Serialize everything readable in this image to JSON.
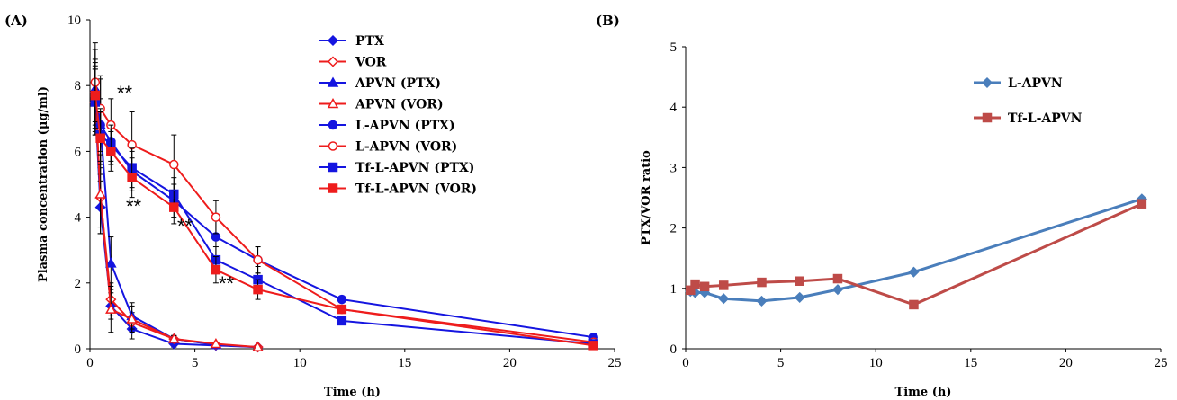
{
  "chart_data": [
    {
      "panel_label": "(A)",
      "type": "line",
      "xlabel": "Time (h)",
      "ylabel": "Plasma concentration  (μg/ml)",
      "xlim": [
        0,
        25
      ],
      "ylim": [
        0,
        10
      ],
      "xticks": [
        "0",
        "5",
        "10",
        "15",
        "20",
        "25"
      ],
      "yticks": [
        "0",
        "2",
        "4",
        "6",
        "8",
        "10"
      ],
      "legend_position": "top-center",
      "annotations": [
        "**",
        "**",
        "**",
        "**"
      ],
      "series": [
        {
          "name": "PTX",
          "color": "#1515e0",
          "marker": "diamond",
          "filled": true,
          "x": [
            0.25,
            0.5,
            1,
            2,
            4,
            6,
            8
          ],
          "y": [
            7.5,
            4.3,
            1.3,
            0.6,
            0.15,
            0.1,
            0.05
          ],
          "err": [
            1.0,
            0.8,
            0.4,
            0.3,
            0.1,
            0.05,
            0.03
          ]
        },
        {
          "name": "VOR",
          "color": "#ee1c1c",
          "marker": "diamond",
          "filled": false,
          "x": [
            0.25,
            0.5,
            1,
            2,
            4,
            6,
            8
          ],
          "y": [
            7.8,
            4.6,
            1.5,
            0.8,
            0.3,
            0.12,
            0.05
          ],
          "err": [
            1.0,
            0.9,
            0.5,
            0.3,
            0.1,
            0.05,
            0.03
          ]
        },
        {
          "name": "APVN (PTX)",
          "color": "#1515e0",
          "marker": "triangle",
          "filled": true,
          "x": [
            0.25,
            0.5,
            1,
            2,
            4,
            6,
            8
          ],
          "y": [
            7.9,
            6.8,
            2.6,
            1.0,
            0.3,
            0.12,
            0.05
          ],
          "err": [
            1.2,
            1.5,
            0.8,
            0.4,
            0.1,
            0.05,
            0.03
          ]
        },
        {
          "name": "APVN (VOR)",
          "color": "#ee1c1c",
          "marker": "triangle",
          "filled": false,
          "x": [
            0.25,
            0.5,
            1,
            2,
            4,
            6,
            8
          ],
          "y": [
            7.6,
            4.7,
            1.2,
            0.9,
            0.3,
            0.15,
            0.05
          ],
          "err": [
            1.0,
            1.2,
            0.7,
            0.4,
            0.1,
            0.05,
            0.03
          ]
        },
        {
          "name": "L-APVN (PTX)",
          "color": "#1515e0",
          "marker": "circle",
          "filled": true,
          "x": [
            0.25,
            0.5,
            1,
            2,
            4,
            6,
            8,
            12,
            24
          ],
          "y": [
            7.8,
            6.8,
            6.3,
            5.4,
            4.5,
            3.4,
            2.7,
            1.5,
            0.35
          ],
          "err": [
            1.3,
            0.8,
            0.6,
            0.6,
            0.5,
            0.6,
            0.4,
            0.1,
            0.05
          ]
        },
        {
          "name": "L-APVN (VOR)",
          "color": "#ee1c1c",
          "marker": "circle",
          "filled": false,
          "x": [
            0.25,
            0.5,
            1,
            2,
            4,
            6,
            8,
            12,
            24
          ],
          "y": [
            8.1,
            7.3,
            6.8,
            6.2,
            5.6,
            4.0,
            2.7,
            1.2,
            0.2
          ],
          "err": [
            1.2,
            0.9,
            0.8,
            1.0,
            0.9,
            0.5,
            0.4,
            0.1,
            0.05
          ]
        },
        {
          "name": "Tf-L-APVN (PTX)",
          "color": "#1515e0",
          "marker": "square",
          "filled": true,
          "x": [
            0.25,
            0.5,
            1,
            2,
            4,
            6,
            8,
            12,
            24
          ],
          "y": [
            7.5,
            6.5,
            6.2,
            5.5,
            4.7,
            2.7,
            2.1,
            0.85,
            0.15
          ],
          "err": [
            1.0,
            0.8,
            0.6,
            0.6,
            0.5,
            0.4,
            0.4,
            0.1,
            0.05
          ]
        },
        {
          "name": "Tf-L-APVN (VOR)",
          "color": "#ee1c1c",
          "marker": "square",
          "filled": true,
          "x": [
            0.25,
            0.5,
            1,
            2,
            4,
            6,
            8,
            12,
            24
          ],
          "y": [
            7.7,
            6.4,
            6.0,
            5.2,
            4.3,
            2.4,
            1.8,
            1.2,
            0.1
          ],
          "err": [
            1.0,
            0.8,
            0.6,
            0.6,
            0.5,
            0.4,
            0.3,
            0.1,
            0.05
          ]
        }
      ]
    },
    {
      "panel_label": "(B)",
      "type": "line",
      "xlabel": "Time (h)",
      "ylabel": "PTX/VOR  ratio",
      "xlim": [
        0,
        25
      ],
      "ylim": [
        0,
        5
      ],
      "xticks": [
        "0",
        "5",
        "10",
        "15",
        "20",
        "25"
      ],
      "yticks": [
        "0",
        "1",
        "2",
        "3",
        "4",
        "5"
      ],
      "legend_position": "top-center",
      "series": [
        {
          "name": "L-APVN",
          "color": "#4a7ebb",
          "marker": "diamond",
          "x": [
            0.25,
            0.5,
            1,
            2,
            4,
            6,
            8,
            12,
            24
          ],
          "y": [
            0.95,
            0.93,
            0.93,
            0.83,
            0.79,
            0.85,
            0.98,
            1.27,
            2.48
          ]
        },
        {
          "name": "Tf-L-APVN",
          "color": "#be4b48",
          "marker": "square",
          "x": [
            0.25,
            0.5,
            1,
            2,
            4,
            6,
            8,
            12,
            24
          ],
          "y": [
            0.97,
            1.07,
            1.03,
            1.05,
            1.1,
            1.12,
            1.16,
            0.73,
            2.4
          ]
        }
      ]
    }
  ]
}
